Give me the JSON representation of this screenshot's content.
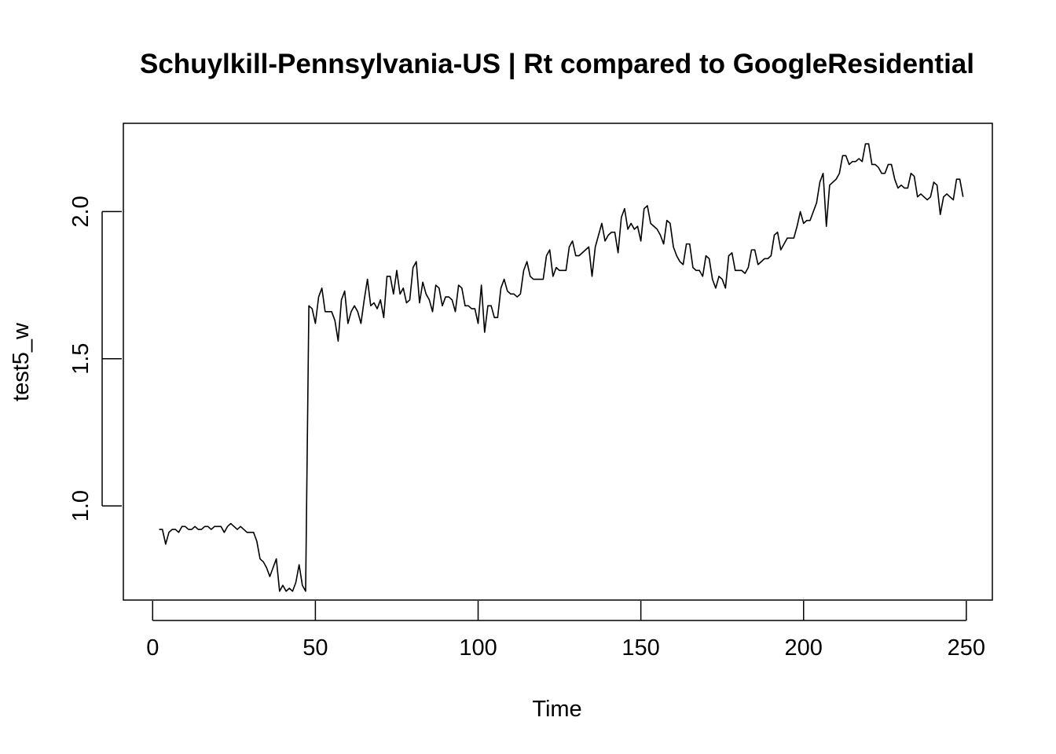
{
  "chart_data": {
    "type": "line",
    "title": "Schuylkill-Pennsylvania-US | Rt compared to GoogleResidential",
    "xlabel": "Time",
    "ylabel": "test5_w",
    "xlim": [
      -9,
      258
    ],
    "ylim": [
      0.68,
      2.3
    ],
    "x_ticks": [
      {
        "value": 0,
        "label": "0"
      },
      {
        "value": 50,
        "label": "50"
      },
      {
        "value": 100,
        "label": "100"
      },
      {
        "value": 150,
        "label": "150"
      },
      {
        "value": 200,
        "label": "200"
      },
      {
        "value": 250,
        "label": "250"
      }
    ],
    "y_ticks": [
      {
        "value": 1.0,
        "label": "1.0"
      },
      {
        "value": 1.5,
        "label": "1.5"
      },
      {
        "value": 2.0,
        "label": "2.0"
      }
    ],
    "grid": false,
    "line_color": "#000000",
    "series": [
      {
        "x_start": 2,
        "x_step": 1,
        "values": [
          0.92,
          0.92,
          0.87,
          0.91,
          0.92,
          0.92,
          0.91,
          0.93,
          0.93,
          0.92,
          0.92,
          0.93,
          0.92,
          0.92,
          0.93,
          0.93,
          0.92,
          0.93,
          0.93,
          0.93,
          0.91,
          0.93,
          0.94,
          0.93,
          0.92,
          0.93,
          0.92,
          0.91,
          0.91,
          0.91,
          0.88,
          0.82,
          0.81,
          0.79,
          0.76,
          0.79,
          0.82,
          0.71,
          0.73,
          0.71,
          0.72,
          0.71,
          0.74,
          0.8,
          0.73,
          0.71,
          1.68,
          1.67,
          1.62,
          1.71,
          1.74,
          1.66,
          1.66,
          1.66,
          1.63,
          1.56,
          1.7,
          1.73,
          1.62,
          1.66,
          1.68,
          1.66,
          1.62,
          1.7,
          1.77,
          1.68,
          1.69,
          1.67,
          1.7,
          1.64,
          1.78,
          1.78,
          1.72,
          1.8,
          1.72,
          1.74,
          1.69,
          1.7,
          1.81,
          1.83,
          1.69,
          1.76,
          1.72,
          1.7,
          1.66,
          1.75,
          1.74,
          1.68,
          1.71,
          1.71,
          1.7,
          1.66,
          1.75,
          1.74,
          1.68,
          1.68,
          1.67,
          1.67,
          1.62,
          1.75,
          1.59,
          1.68,
          1.68,
          1.64,
          1.64,
          1.74,
          1.77,
          1.73,
          1.72,
          1.72,
          1.71,
          1.72,
          1.8,
          1.83,
          1.78,
          1.77,
          1.77,
          1.77,
          1.77,
          1.85,
          1.87,
          1.78,
          1.81,
          1.8,
          1.8,
          1.8,
          1.88,
          1.9,
          1.85,
          1.85,
          1.86,
          1.87,
          1.88,
          1.78,
          1.88,
          1.92,
          1.96,
          1.9,
          1.92,
          1.93,
          1.93,
          1.86,
          1.98,
          2.01,
          1.94,
          1.96,
          1.94,
          1.95,
          1.9,
          2.01,
          2.02,
          1.96,
          1.95,
          1.94,
          1.92,
          1.89,
          1.97,
          1.96,
          1.88,
          1.85,
          1.83,
          1.82,
          1.89,
          1.89,
          1.81,
          1.8,
          1.8,
          1.78,
          1.85,
          1.84,
          1.77,
          1.74,
          1.78,
          1.77,
          1.74,
          1.85,
          1.86,
          1.8,
          1.8,
          1.8,
          1.79,
          1.81,
          1.87,
          1.87,
          1.82,
          1.83,
          1.84,
          1.84,
          1.85,
          1.92,
          1.93,
          1.87,
          1.89,
          1.91,
          1.91,
          1.91,
          1.95,
          2.0,
          1.96,
          1.97,
          1.97,
          2.0,
          2.03,
          2.1,
          2.13,
          1.95,
          2.09,
          2.1,
          2.11,
          2.13,
          2.19,
          2.19,
          2.16,
          2.17,
          2.17,
          2.18,
          2.17,
          2.23,
          2.23,
          2.16,
          2.16,
          2.15,
          2.13,
          2.13,
          2.16,
          2.16,
          2.11,
          2.08,
          2.09,
          2.08,
          2.08,
          2.13,
          2.12,
          2.05,
          2.06,
          2.05,
          2.04,
          2.05,
          2.1,
          2.09,
          1.99,
          2.05,
          2.06,
          2.05,
          2.04,
          2.11,
          2.11,
          2.05
        ]
      }
    ]
  }
}
